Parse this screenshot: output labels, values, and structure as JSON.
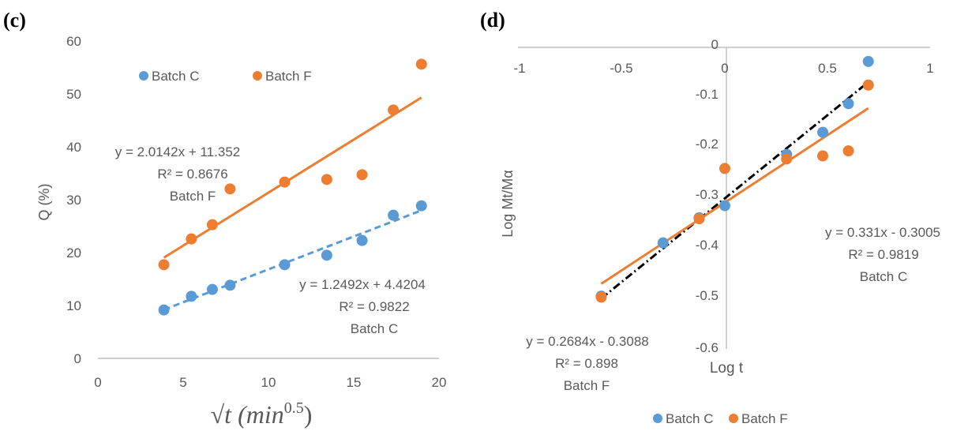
{
  "colors": {
    "batch_c": "#5B9BD5",
    "batch_f": "#ED7D31",
    "fit_dashdot": "#000000",
    "axis": "#BFBFBF",
    "text": "#595959"
  },
  "chart_data": [
    {
      "panel": "(c)",
      "type": "scatter",
      "xlabel_main": "√t (min",
      "xlabel_sup": "0.5",
      "xlabel_close": ")",
      "ylabel": "Q (%)",
      "xlim": [
        0,
        20
      ],
      "ylim": [
        0,
        60
      ],
      "xticks": [
        "0",
        "5",
        "10",
        "15",
        "20"
      ],
      "yticks": [
        "0",
        "10",
        "20",
        "30",
        "40",
        "50",
        "60"
      ],
      "grid": false,
      "legend": {
        "position": "top-left",
        "entries": [
          "Batch C",
          "Batch F"
        ]
      },
      "series": [
        {
          "name": "Batch C",
          "color": "#5B9BD5",
          "x": [
            3.87,
            5.48,
            6.71,
            7.75,
            10.95,
            13.42,
            15.49,
            17.32,
            18.97
          ],
          "y": [
            9.2,
            11.8,
            13.1,
            13.9,
            17.8,
            19.6,
            22.4,
            27.2,
            29.0
          ],
          "trendline": {
            "slope": 1.2492,
            "intercept": 4.4204,
            "style": "dashed"
          }
        },
        {
          "name": "Batch F",
          "color": "#ED7D31",
          "x": [
            3.87,
            5.48,
            6.71,
            7.75,
            10.95,
            13.42,
            15.49,
            17.32,
            18.97
          ],
          "y": [
            17.8,
            22.7,
            25.4,
            32.2,
            33.5,
            34.0,
            34.9,
            47.2,
            55.9
          ],
          "trendline": {
            "slope": 2.0142,
            "intercept": 11.352,
            "style": "solid"
          }
        }
      ],
      "annotations": [
        {
          "lines": [
            "y = 2.0142x + 11.352",
            "R² = 0.8676",
            "Batch F"
          ]
        },
        {
          "lines": [
            "y = 1.2492x + 4.4204",
            "R² = 0.9822",
            "Batch C"
          ]
        }
      ]
    },
    {
      "panel": "(d)",
      "type": "scatter",
      "xlabel": "Log t",
      "ylabel": "Log Mt/Mα",
      "xlim": [
        -1,
        1
      ],
      "ylim": [
        -0.6,
        0
      ],
      "xticks": [
        "-1",
        "-0.5",
        "0",
        "0.5",
        "1"
      ],
      "yticks": [
        "0",
        "-0.1",
        "-0.2",
        "-0.3",
        "-0.4",
        "-0.5",
        "-0.6"
      ],
      "grid": false,
      "legend": {
        "position": "bottom",
        "entries": [
          "Batch C",
          "Batch F"
        ]
      },
      "series": [
        {
          "name": "Batch C",
          "color": "#5B9BD5",
          "x": [
            -0.602,
            -0.301,
            -0.125,
            0.0,
            0.301,
            0.477,
            0.602,
            0.699
          ],
          "y": [
            -0.495,
            -0.389,
            -0.339,
            -0.315,
            -0.213,
            -0.169,
            -0.112,
            -0.028
          ],
          "trendline": {
            "slope": 0.331,
            "intercept": -0.3005,
            "style": "dashdot"
          }
        },
        {
          "name": "Batch F",
          "color": "#ED7D31",
          "x": [
            -0.602,
            -0.125,
            0.0,
            0.301,
            0.477,
            0.602,
            0.699
          ],
          "y": [
            -0.497,
            -0.341,
            -0.241,
            -0.222,
            -0.216,
            -0.206,
            -0.075
          ],
          "trendline": {
            "slope": 0.2684,
            "intercept": -0.3088,
            "style": "solid"
          }
        }
      ],
      "annotations": [
        {
          "lines": [
            "y = 0.331x - 0.3005",
            "R² = 0.9819",
            "Batch C"
          ]
        },
        {
          "lines": [
            "y = 0.2684x - 0.3088",
            "R² = 0.898",
            "Batch F"
          ]
        }
      ]
    }
  ]
}
